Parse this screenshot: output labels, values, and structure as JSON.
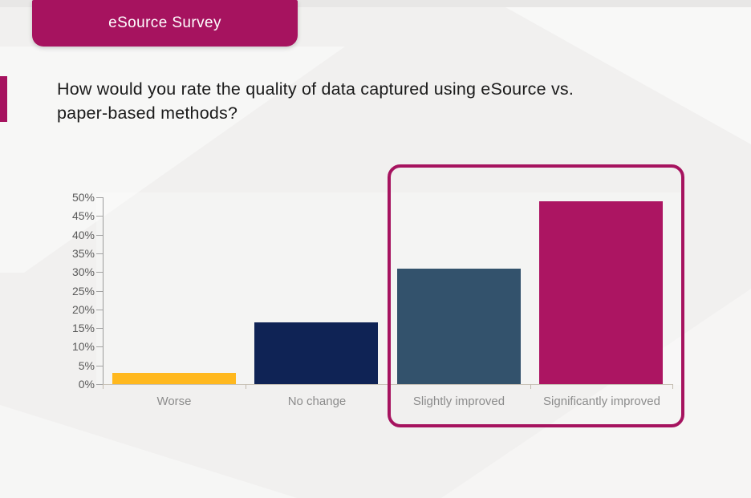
{
  "slide": {
    "badge_label": "eSource Survey",
    "title_line1": "How would you rate the quality of data captured using eSource vs.",
    "title_line2": "paper-based methods?"
  },
  "colors": {
    "brand_magenta": "#a6135f",
    "background": "#f1f0ef",
    "title_text": "#1b1b1b",
    "axis_text": "#5a5a5a",
    "category_text": "#8c8c8c"
  },
  "chart_data": {
    "type": "bar",
    "title": "How would you rate the quality of data captured using eSource vs. paper-based methods?",
    "categories": [
      "Worse",
      "No change",
      "Slightly improved",
      "Significantly improved"
    ],
    "values": [
      3,
      16.5,
      31,
      49
    ],
    "unit": "%",
    "xlabel": "",
    "ylabel": "",
    "ylim": [
      0,
      50
    ],
    "ytick_step": 5,
    "ytick_labels": [
      "0%",
      "5%",
      "10%",
      "15%",
      "20%",
      "25%",
      "30%",
      "35%",
      "40%",
      "45%",
      "50%"
    ],
    "grid": false,
    "legend": false,
    "bar_colors": [
      "#ffb81e",
      "#0f2355",
      "#33526c",
      "#ac1562"
    ],
    "highlight": {
      "category_indexes": [
        2,
        3
      ],
      "style": "rounded magenta outline",
      "color": "#a6135f"
    }
  }
}
